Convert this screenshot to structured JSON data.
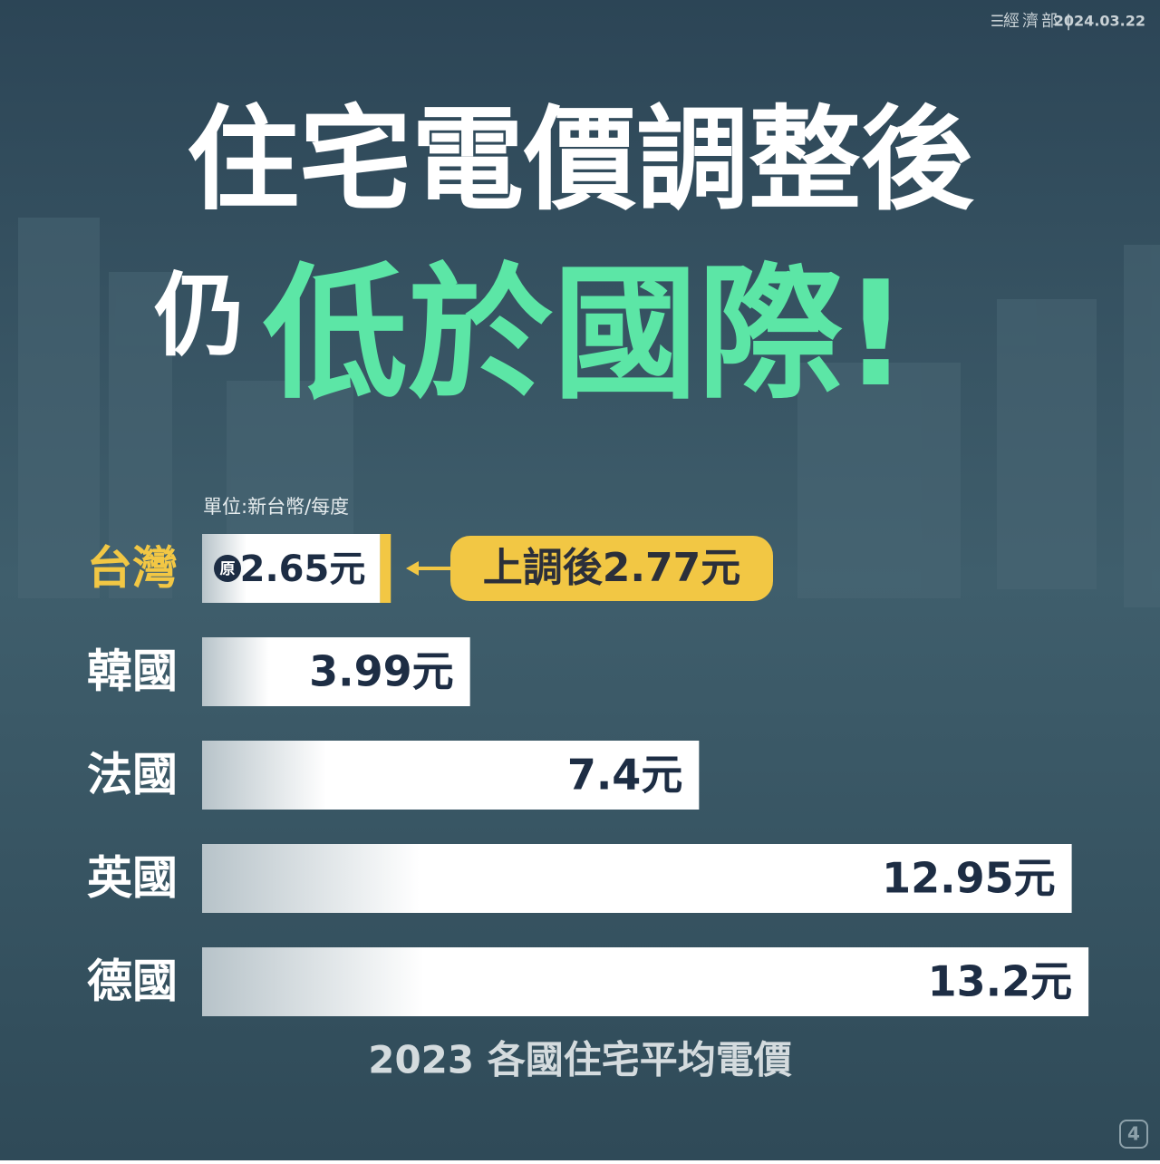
{
  "header": {
    "org": "經濟部",
    "date": "2024.03.22"
  },
  "page_number": "4",
  "chart_data": {
    "type": "bar",
    "orientation": "horizontal",
    "title": "住宅電價調整後",
    "subtitle_prefix": "仍",
    "subtitle": "低於國際!",
    "unit": "單位:新台幣/每度",
    "categories": [
      "台灣",
      "韓國",
      "法國",
      "英國",
      "德國"
    ],
    "values": [
      2.65,
      3.99,
      7.4,
      12.95,
      13.2
    ],
    "value_labels": [
      "2.65元",
      "3.99元",
      "7.4元",
      "12.95元",
      "13.2元"
    ],
    "highlight_color": "#f2c744",
    "original_badge": "原",
    "adjusted": {
      "value": 2.77,
      "label": "上調後2.77元"
    },
    "caption": "2023 各國住宅平均電價"
  }
}
